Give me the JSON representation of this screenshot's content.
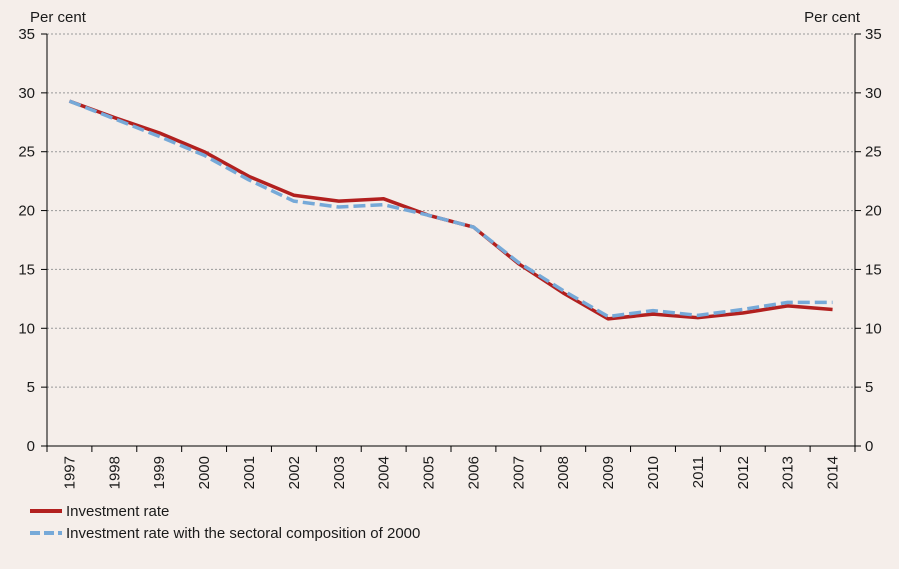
{
  "chart_data": {
    "type": "line",
    "ylabel": "Per cent",
    "y2label": "Per cent",
    "categories": [
      "1997",
      "1998",
      "1999",
      "2000",
      "2001",
      "2002",
      "2003",
      "2004",
      "2005",
      "2006",
      "2007",
      "2008",
      "2009",
      "2010",
      "2011",
      "2012",
      "2013",
      "2014"
    ],
    "series": [
      {
        "name": "Investment rate",
        "color": "#b2201f",
        "dashed": false,
        "values": [
          29.3,
          27.9,
          26.6,
          25.0,
          22.9,
          21.3,
          20.8,
          21.0,
          19.6,
          18.6,
          15.5,
          13.0,
          10.8,
          11.2,
          10.9,
          11.3,
          11.9,
          11.6
        ]
      },
      {
        "name": "Investment rate with the sectoral composition of 2000",
        "color": "#76a9d8",
        "dashed": true,
        "values": [
          29.3,
          27.8,
          26.3,
          24.7,
          22.6,
          20.8,
          20.3,
          20.5,
          19.6,
          18.6,
          15.6,
          13.2,
          11.0,
          11.5,
          11.1,
          11.6,
          12.2,
          12.2
        ]
      }
    ],
    "ylim": [
      0,
      35
    ],
    "yticks": [
      0,
      5,
      10,
      15,
      20,
      25,
      30,
      35
    ],
    "y2lim": [
      0,
      35
    ],
    "y2ticks": [
      0,
      5,
      10,
      15,
      20,
      25,
      30,
      35
    ],
    "grid": true
  }
}
